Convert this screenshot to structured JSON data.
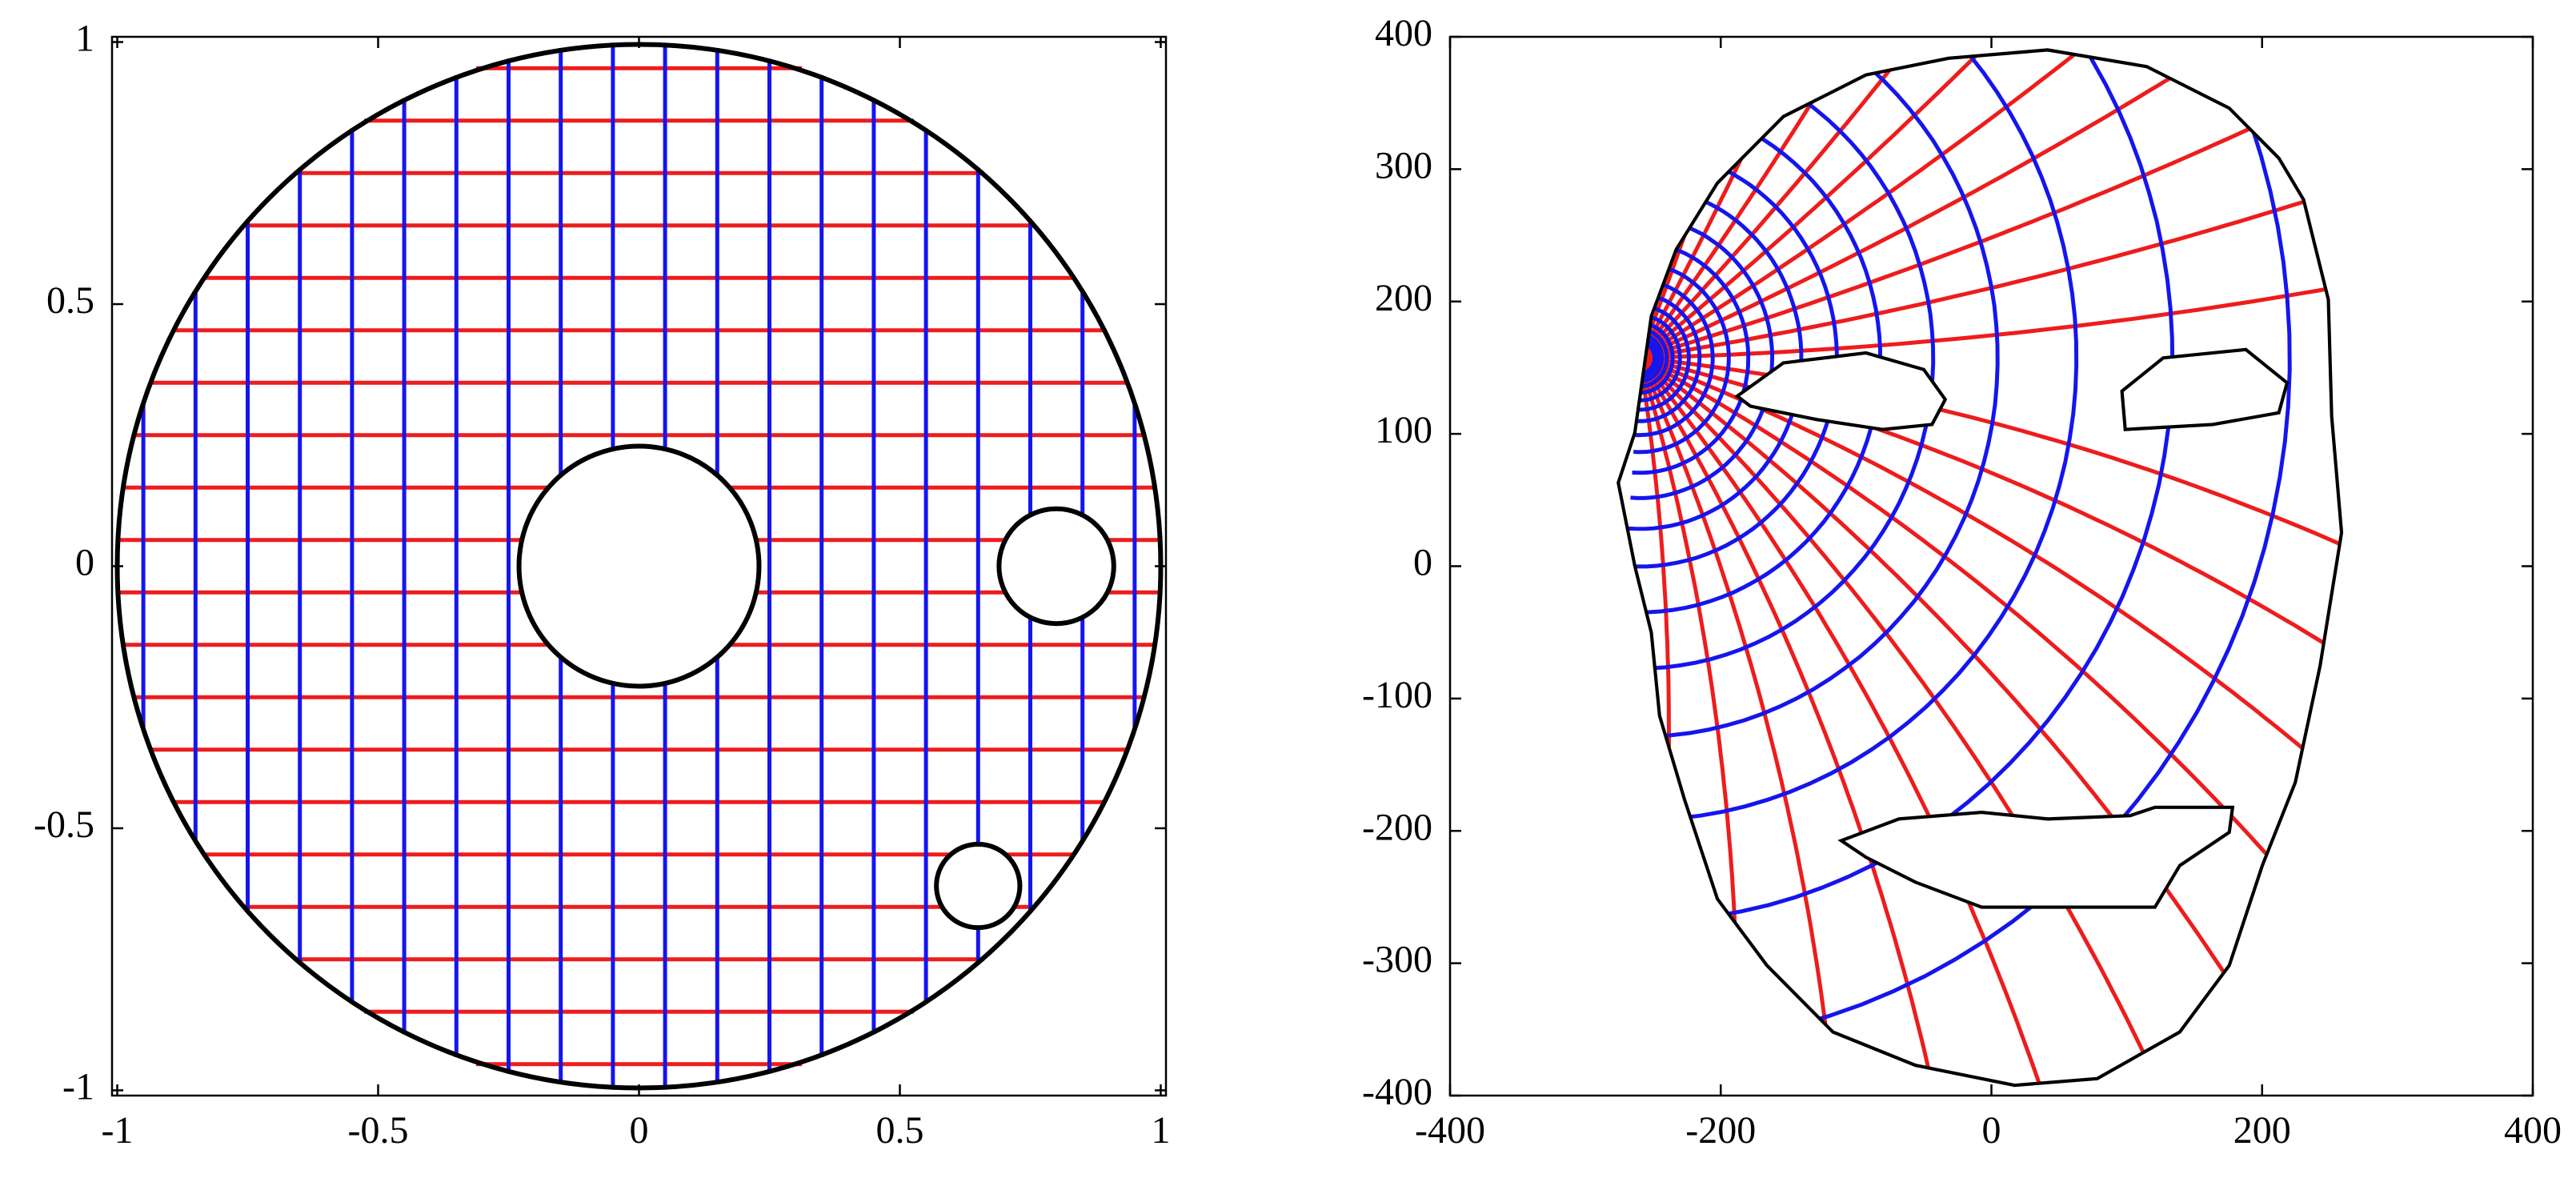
{
  "chart_data": [
    {
      "type": "disk",
      "xlim": [
        -1.01,
        1.01
      ],
      "ylim": [
        -1.01,
        1.01
      ],
      "xticks": [
        -1,
        -0.5,
        0,
        0.5,
        1
      ],
      "yticks": [
        -1,
        -0.5,
        0,
        0.5,
        1
      ],
      "circles": [
        {
          "x": 0,
          "y": 0,
          "r": 1
        },
        {
          "x": 0,
          "y": 0,
          "r": 0.23
        },
        {
          "x": 0.8,
          "y": 0,
          "r": 0.11
        },
        {
          "x": 0.65,
          "y": -0.61,
          "r": 0.08
        }
      ]
    },
    {
      "type": "face",
      "xlim": [
        -400,
        400
      ],
      "ylim": [
        -400,
        400
      ],
      "xticks": [
        -400,
        -200,
        0,
        200,
        400
      ],
      "yticks": [
        -400,
        -300,
        -200,
        -100,
        0,
        100,
        200,
        300,
        400
      ]
    }
  ]
}
